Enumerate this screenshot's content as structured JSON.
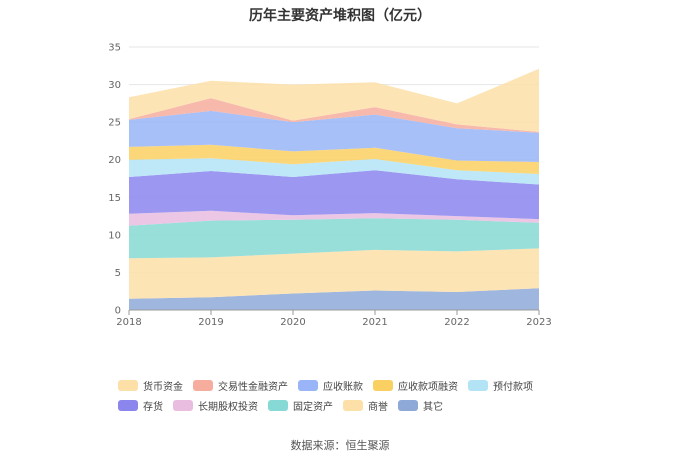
{
  "title": "历年主要资产堆积图（亿元）",
  "source": "数据来源：恒生聚源",
  "chart_data": {
    "type": "area",
    "stacked": true,
    "title": "历年主要资产堆积图（亿元）",
    "x": [
      "2018",
      "2019",
      "2020",
      "2021",
      "2022",
      "2023"
    ],
    "ylim": [
      0,
      35
    ],
    "yticks": [
      0,
      5,
      10,
      15,
      20,
      25,
      30,
      35
    ],
    "grid": true,
    "legend_position": "bottom",
    "series": [
      {
        "name": "其它",
        "color": "#8ea9d8",
        "values": [
          1.5,
          1.7,
          2.2,
          2.6,
          2.4,
          2.9
        ]
      },
      {
        "name": "商誉",
        "color": "#fddfa8",
        "values": [
          5.4,
          5.3,
          5.3,
          5.4,
          5.4,
          5.3
        ]
      },
      {
        "name": "固定资产",
        "color": "#86d9d4",
        "values": [
          4.3,
          4.9,
          4.5,
          4.2,
          4.2,
          3.4
        ]
      },
      {
        "name": "长期股权投资",
        "color": "#e8bde0",
        "values": [
          1.6,
          1.3,
          0.6,
          0.7,
          0.5,
          0.5
        ]
      },
      {
        "name": "存货",
        "color": "#8b86ee",
        "values": [
          4.9,
          5.3,
          5.1,
          5.7,
          4.9,
          4.6
        ]
      },
      {
        "name": "预付款项",
        "color": "#b3e4f6",
        "values": [
          2.3,
          1.7,
          1.7,
          1.5,
          1.2,
          1.4
        ]
      },
      {
        "name": "应收款项融资",
        "color": "#fbd062",
        "values": [
          1.7,
          1.8,
          1.7,
          1.5,
          1.3,
          1.6
        ]
      },
      {
        "name": "应收账款",
        "color": "#99b5f7",
        "values": [
          3.6,
          4.5,
          3.9,
          4.4,
          4.3,
          3.9
        ]
      },
      {
        "name": "交易性金融资产",
        "color": "#f6ad9e",
        "values": [
          0.1,
          1.7,
          0.2,
          1.0,
          0.5,
          0.1
        ]
      },
      {
        "name": "货币资金",
        "color": "#fddfa8",
        "values": [
          2.9,
          2.3,
          4.8,
          3.3,
          2.8,
          8.4
        ]
      }
    ]
  },
  "legend": [
    {
      "label": "货币资金",
      "color": "#fddfa8"
    },
    {
      "label": "交易性金融资产",
      "color": "#f6ad9e"
    },
    {
      "label": "应收账款",
      "color": "#99b5f7"
    },
    {
      "label": "应收款项融资",
      "color": "#fbd062"
    },
    {
      "label": "预付款项",
      "color": "#b3e4f6"
    },
    {
      "label": "存货",
      "color": "#8b86ee"
    },
    {
      "label": "长期股权投资",
      "color": "#e8bde0"
    },
    {
      "label": "固定资产",
      "color": "#86d9d4"
    },
    {
      "label": "商誉",
      "color": "#fddfa8"
    },
    {
      "label": "其它",
      "color": "#8ea9d8"
    }
  ]
}
